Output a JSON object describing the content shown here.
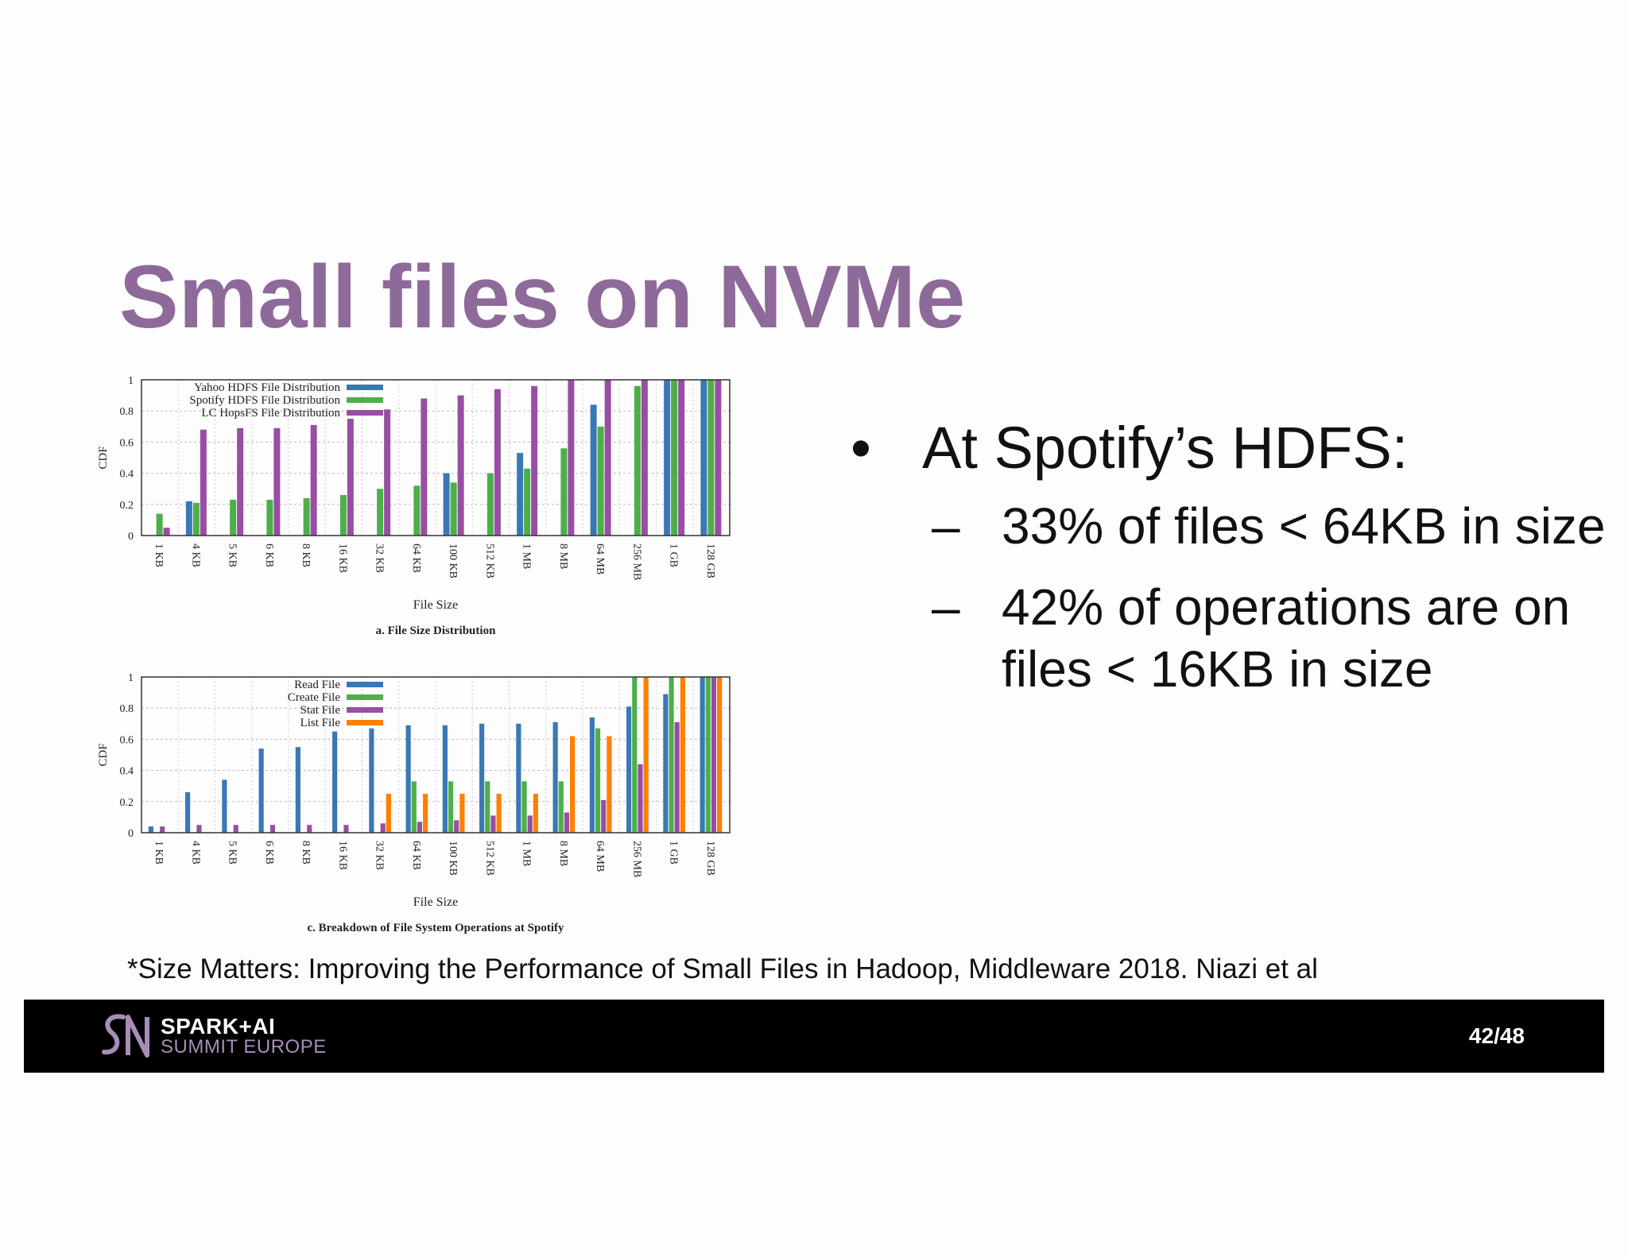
{
  "slide": {
    "title": "Small files on NVMe",
    "bullet_main": "At Spotify’s HDFS:",
    "bullet_sub_1": "33% of files < 64KB in size",
    "bullet_sub_2": "42% of operations are on files < 16KB in size",
    "bullet_marker": "•",
    "sub_marker": "–",
    "footnote": "*Size Matters: Improving the Performance of Small Files in Hadoop, Middleware 2018. Niazi et al"
  },
  "footer": {
    "logo_title": "SPARK+AI",
    "logo_subtitle": "SUMMIT EUROPE",
    "page_number": "42/48",
    "colors": {
      "background": "#000000",
      "subtitle": "#a88db6",
      "mark": "#a88db6"
    }
  },
  "chart_data": [
    {
      "type": "bar",
      "caption": "a. File Size Distribution",
      "xlabel": "File Size",
      "ylabel": "CDF",
      "ylim": [
        0,
        1
      ],
      "yticks": [
        "0",
        "0.2",
        "0.4",
        "0.6",
        "0.8",
        "1"
      ],
      "grid": true,
      "legend_position": "top-left",
      "categories": [
        "1 KB",
        "4 KB",
        "5 KB",
        "6 KB",
        "8 KB",
        "16 KB",
        "32 KB",
        "64 KB",
        "100 KB",
        "512 KB",
        "1 MB",
        "8 MB",
        "64 MB",
        "256 MB",
        "1 GB",
        "128 GB"
      ],
      "series": [
        {
          "name": "Yahoo HDFS File Distribution",
          "color": "#3a78b5",
          "values": [
            0,
            0.22,
            0,
            0,
            0,
            0,
            0,
            0,
            0.4,
            0,
            0.53,
            0,
            0.84,
            0,
            1,
            1
          ]
        },
        {
          "name": "Spotify HDFS File Distribution",
          "color": "#4daf4a",
          "values": [
            0.14,
            0.21,
            0.23,
            0.23,
            0.24,
            0.26,
            0.3,
            0.32,
            0.34,
            0.4,
            0.43,
            0.56,
            0.7,
            0.96,
            1,
            1
          ]
        },
        {
          "name": "LC HopsFS File Distribution",
          "color": "#984ea3",
          "values": [
            0.05,
            0.68,
            0.69,
            0.69,
            0.71,
            0.75,
            0.81,
            0.88,
            0.9,
            0.94,
            0.96,
            1,
            1,
            1,
            1,
            1
          ]
        }
      ]
    },
    {
      "type": "bar",
      "caption": "c. Breakdown of File System Operations at Spotify",
      "xlabel": "File Size",
      "ylabel": "CDF",
      "ylim": [
        0,
        1
      ],
      "yticks": [
        "0",
        "0.2",
        "0.4",
        "0.6",
        "0.8",
        "1"
      ],
      "grid": true,
      "legend_position": "top-left",
      "categories": [
        "1 KB",
        "4 KB",
        "5 KB",
        "6 KB",
        "8 KB",
        "16 KB",
        "32 KB",
        "64 KB",
        "100 KB",
        "512 KB",
        "1 MB",
        "8 MB",
        "64 MB",
        "256 MB",
        "1 GB",
        "128 GB"
      ],
      "series": [
        {
          "name": "Read File",
          "color": "#3a78b5",
          "values": [
            0.04,
            0.26,
            0.34,
            0.54,
            0.55,
            0.65,
            0.67,
            0.69,
            0.69,
            0.7,
            0.7,
            0.71,
            0.74,
            0.81,
            0.89,
            1
          ]
        },
        {
          "name": "Create File",
          "color": "#4daf4a",
          "values": [
            0,
            0,
            0,
            0,
            0,
            0,
            0,
            0.33,
            0.33,
            0.33,
            0.33,
            0.33,
            0.67,
            1,
            1,
            1
          ]
        },
        {
          "name": "Stat File",
          "color": "#984ea3",
          "values": [
            0.04,
            0.05,
            0.05,
            0.05,
            0.05,
            0.05,
            0.06,
            0.07,
            0.08,
            0.11,
            0.11,
            0.13,
            0.21,
            0.44,
            0.71,
            1
          ]
        },
        {
          "name": "List File",
          "color": "#ff7f00",
          "values": [
            0,
            0,
            0,
            0,
            0,
            0,
            0.25,
            0.25,
            0.25,
            0.25,
            0.25,
            0.62,
            0.62,
            1,
            1,
            1
          ]
        }
      ]
    }
  ]
}
